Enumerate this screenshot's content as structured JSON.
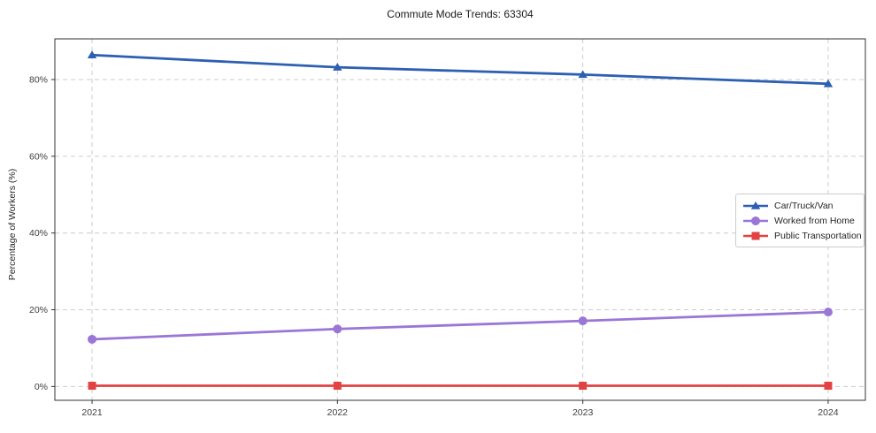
{
  "chart_data": {
    "type": "line",
    "title": "Commute Mode Trends: 63304",
    "xlabel": "",
    "ylabel": "Percentage of Workers (%)",
    "categories": [
      "2021",
      "2022",
      "2023",
      "2024"
    ],
    "series": [
      {
        "name": "Car/Truck/Van",
        "color": "#2d5fb2",
        "marker": "triangle",
        "values": [
          86.4,
          83.2,
          81.3,
          78.9
        ]
      },
      {
        "name": "Worked from Home",
        "color": "#9a76d6",
        "marker": "circle",
        "values": [
          12.3,
          15.0,
          17.1,
          19.4
        ]
      },
      {
        "name": "Public Transportation",
        "color": "#e34242",
        "marker": "square",
        "values": [
          0.2,
          0.2,
          0.2,
          0.2
        ]
      }
    ],
    "yticks": [
      0,
      20,
      40,
      60,
      80
    ],
    "yticklabels": [
      "0%",
      "20%",
      "40%",
      "60%",
      "80%"
    ],
    "ylim": [
      -3.6,
      90.6
    ],
    "grid": true,
    "grid_style": "dashed",
    "grid_color": "#cccccc",
    "spine_color": "#333333",
    "tick_label_color": "#404040",
    "legend_position": "center right"
  }
}
